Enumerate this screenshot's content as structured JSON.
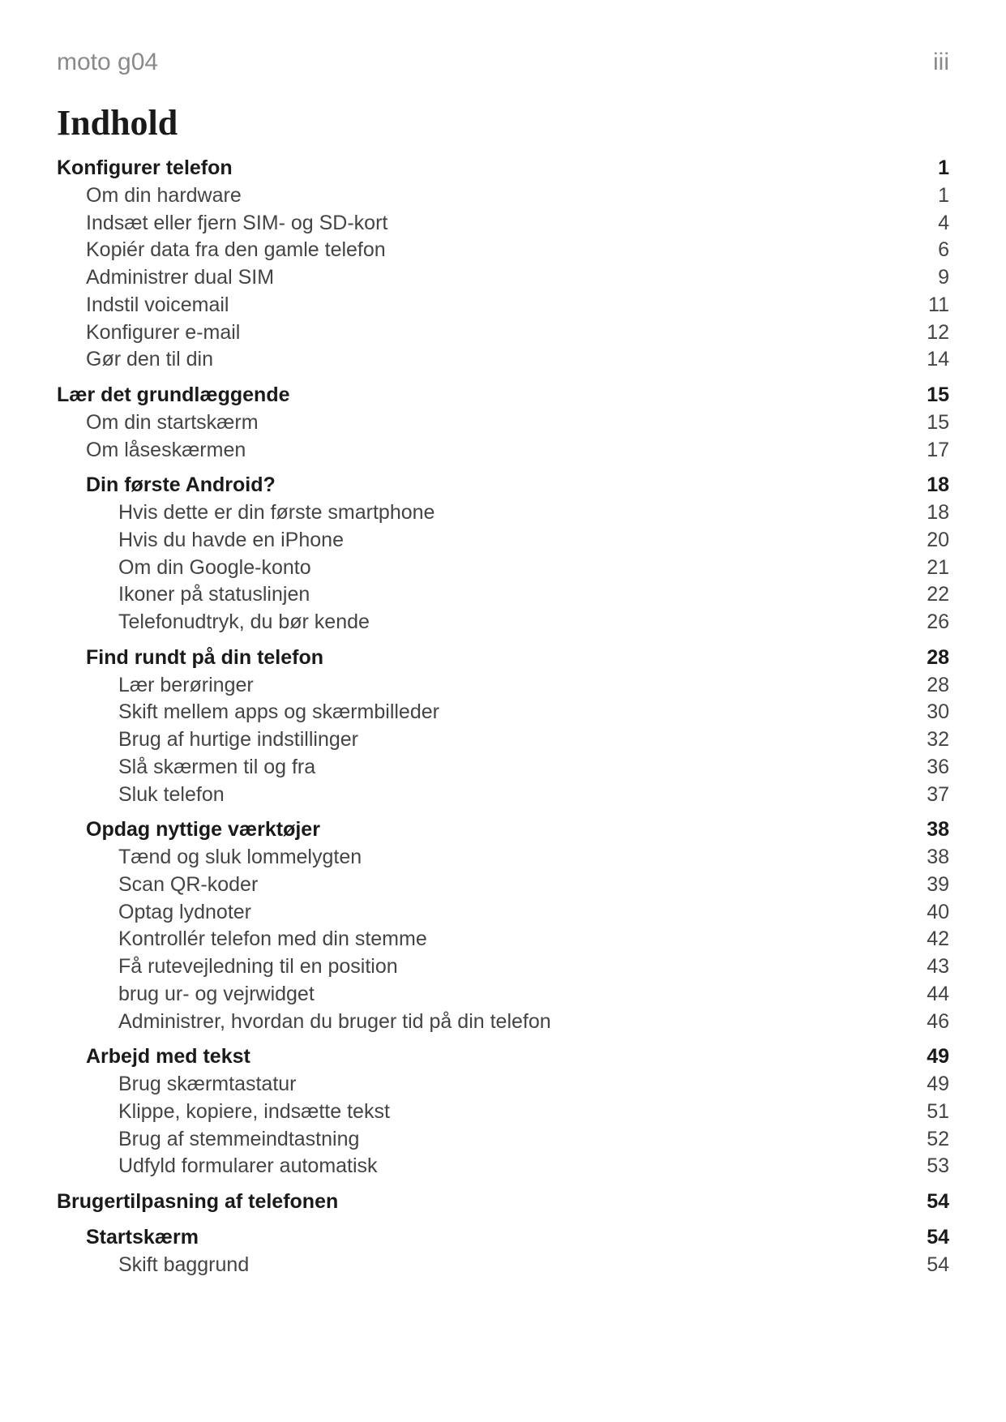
{
  "header": {
    "device": "moto g04",
    "pageNumeral": "iii"
  },
  "title": "Indhold",
  "toc": [
    {
      "level": 0,
      "bold": true,
      "label": "Konfigurer telefon",
      "page": "1",
      "gapBefore": false
    },
    {
      "level": 1,
      "bold": false,
      "label": "Om din hardware",
      "page": "1"
    },
    {
      "level": 1,
      "bold": false,
      "label": "Indsæt eller fjern SIM- og SD-kort",
      "page": "4"
    },
    {
      "level": 1,
      "bold": false,
      "label": "Kopiér data fra den gamle telefon",
      "page": "6"
    },
    {
      "level": 1,
      "bold": false,
      "label": "Administrer dual SIM",
      "page": "9"
    },
    {
      "level": 1,
      "bold": false,
      "label": "Indstil voicemail",
      "page": "11"
    },
    {
      "level": 1,
      "bold": false,
      "label": "Konfigurer e-mail",
      "page": "12"
    },
    {
      "level": 1,
      "bold": false,
      "label": "Gør den til din",
      "page": "14"
    },
    {
      "level": 0,
      "bold": true,
      "label": "Lær det grundlæggende",
      "page": "15",
      "gapBefore": true
    },
    {
      "level": 1,
      "bold": false,
      "label": "Om din startskærm",
      "page": "15"
    },
    {
      "level": 1,
      "bold": false,
      "label": "Om låseskærmen",
      "page": "17"
    },
    {
      "level": 1,
      "bold": true,
      "label": "Din første Android?",
      "page": "18",
      "gapBefore": true
    },
    {
      "level": 2,
      "bold": false,
      "label": "Hvis dette er din første smartphone",
      "page": "18"
    },
    {
      "level": 2,
      "bold": false,
      "label": "Hvis du havde en iPhone",
      "page": "20"
    },
    {
      "level": 2,
      "bold": false,
      "label": "Om din Google-konto",
      "page": "21"
    },
    {
      "level": 2,
      "bold": false,
      "label": "Ikoner på statuslinjen",
      "page": "22"
    },
    {
      "level": 2,
      "bold": false,
      "label": "Telefonudtryk, du bør kende",
      "page": "26"
    },
    {
      "level": 1,
      "bold": true,
      "label": "Find rundt på din telefon",
      "page": "28",
      "gapBefore": true
    },
    {
      "level": 2,
      "bold": false,
      "label": "Lær berøringer",
      "page": "28"
    },
    {
      "level": 2,
      "bold": false,
      "label": "Skift mellem apps og skærmbilleder",
      "page": "30"
    },
    {
      "level": 2,
      "bold": false,
      "label": "Brug af hurtige indstillinger",
      "page": "32"
    },
    {
      "level": 2,
      "bold": false,
      "label": "Slå skærmen til og fra",
      "page": "36"
    },
    {
      "level": 2,
      "bold": false,
      "label": "Sluk telefon",
      "page": "37"
    },
    {
      "level": 1,
      "bold": true,
      "label": "Opdag nyttige værktøjer",
      "page": "38",
      "gapBefore": true
    },
    {
      "level": 2,
      "bold": false,
      "label": "Tænd og sluk lommelygten",
      "page": "38"
    },
    {
      "level": 2,
      "bold": false,
      "label": "Scan QR-koder",
      "page": "39"
    },
    {
      "level": 2,
      "bold": false,
      "label": "Optag lydnoter",
      "page": "40"
    },
    {
      "level": 2,
      "bold": false,
      "label": "Kontrollér telefon med din stemme",
      "page": "42"
    },
    {
      "level": 2,
      "bold": false,
      "label": "Få rutevejledning til en position",
      "page": "43"
    },
    {
      "level": 2,
      "bold": false,
      "label": "brug ur- og vejrwidget",
      "page": "44"
    },
    {
      "level": 2,
      "bold": false,
      "label": "Administrer, hvordan du bruger tid på din telefon",
      "page": "46"
    },
    {
      "level": 1,
      "bold": true,
      "label": "Arbejd med tekst",
      "page": "49",
      "gapBefore": true
    },
    {
      "level": 2,
      "bold": false,
      "label": "Brug skærmtastatur",
      "page": "49"
    },
    {
      "level": 2,
      "bold": false,
      "label": "Klippe, kopiere, indsætte tekst",
      "page": "51"
    },
    {
      "level": 2,
      "bold": false,
      "label": "Brug af stemmeindtastning",
      "page": "52"
    },
    {
      "level": 2,
      "bold": false,
      "label": "Udfyld formularer automatisk",
      "page": "53"
    },
    {
      "level": 0,
      "bold": true,
      "label": "Brugertilpasning af telefonen",
      "page": "54",
      "gapBefore": true
    },
    {
      "level": 1,
      "bold": true,
      "label": "Startskærm",
      "page": "54",
      "gapBefore": true
    },
    {
      "level": 2,
      "bold": false,
      "label": "Skift baggrund",
      "page": "54"
    }
  ]
}
